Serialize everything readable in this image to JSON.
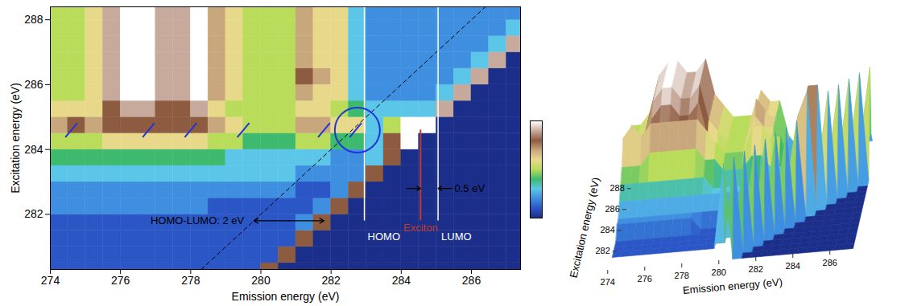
{
  "chart_data": {
    "type": "heatmap",
    "xlabel": "Emission energy (eV)",
    "ylabel": "Excitation energy (eV)",
    "xlim": [
      274,
      287.4
    ],
    "ylim": [
      280.3,
      288.4
    ],
    "xticks": [
      274,
      276,
      278,
      280,
      282,
      284,
      286
    ],
    "yticks": [
      282,
      284,
      286,
      288
    ],
    "x": [
      274.25,
      274.75,
      275.25,
      275.75,
      276.25,
      276.75,
      277.25,
      277.75,
      278.25,
      278.75,
      279.25,
      279.75,
      280.25,
      280.75,
      281.25,
      281.75,
      282.25,
      282.75,
      283.25,
      283.75,
      284.25,
      284.75,
      285.25,
      285.75,
      286.25,
      286.75,
      287.25
    ],
    "y": [
      280.25,
      280.75,
      281.25,
      281.75,
      282.25,
      282.75,
      283.25,
      283.75,
      284.25,
      284.75,
      285.25,
      285.75,
      286.25,
      286.75,
      287.25,
      287.75,
      288.25
    ],
    "cells": [
      [
        1,
        1,
        1,
        1,
        1,
        1,
        1,
        1,
        1,
        1,
        1,
        1,
        8,
        0,
        0,
        0,
        0,
        0,
        0,
        0,
        0,
        0,
        0,
        0,
        0,
        0,
        0
      ],
      [
        1,
        1,
        1,
        1,
        1,
        1,
        1,
        1,
        1,
        1,
        1,
        1,
        1,
        8,
        0,
        0,
        0,
        0,
        0,
        0,
        0,
        0,
        0,
        0,
        0,
        0,
        0
      ],
      [
        1,
        1,
        1,
        1,
        1,
        1,
        1,
        1,
        1,
        1,
        1,
        1,
        1,
        1,
        8,
        0,
        0,
        0,
        0,
        0,
        0,
        0,
        0,
        0,
        0,
        0,
        0
      ],
      [
        1,
        1,
        1,
        1,
        1,
        1,
        1,
        1,
        1,
        1,
        1,
        1,
        1,
        1,
        2,
        8,
        0,
        0,
        0,
        0,
        0,
        0,
        0,
        0,
        0,
        0,
        0
      ],
      [
        2,
        2,
        2,
        2,
        2,
        2,
        2,
        2,
        2,
        1,
        1,
        1,
        1,
        1,
        1,
        2,
        8,
        0,
        0,
        0,
        0,
        0,
        0,
        0,
        0,
        0,
        0
      ],
      [
        2,
        2,
        2,
        2,
        2,
        2,
        2,
        2,
        2,
        2,
        2,
        2,
        2,
        2,
        1,
        1,
        2,
        8,
        0,
        0,
        0,
        0,
        0,
        0,
        0,
        0,
        0
      ],
      [
        3,
        3,
        3,
        3,
        3,
        3,
        3,
        3,
        3,
        3,
        3,
        3,
        3,
        3,
        2,
        2,
        2,
        2,
        8,
        0,
        0,
        0,
        0,
        0,
        0,
        0,
        0
      ],
      [
        4,
        4,
        4,
        4,
        4,
        4,
        4,
        4,
        4,
        4,
        3,
        3,
        3,
        3,
        3,
        3,
        2,
        2,
        3,
        8,
        0,
        0,
        0,
        0,
        0,
        0,
        0
      ],
      [
        5,
        5,
        5,
        6,
        6,
        6,
        6,
        6,
        6,
        5,
        5,
        4,
        4,
        4,
        5,
        5,
        4,
        4,
        3,
        8,
        10,
        0,
        0,
        0,
        0,
        0,
        0
      ],
      [
        7,
        8,
        7,
        8,
        8,
        8,
        8,
        8,
        8,
        7,
        6,
        5,
        5,
        5,
        7,
        7,
        6,
        6,
        3,
        5,
        10,
        10,
        0,
        0,
        0,
        0,
        0
      ],
      [
        6,
        6,
        6,
        8,
        9,
        9,
        8,
        8,
        9,
        6,
        5,
        5,
        5,
        5,
        6,
        6,
        5,
        4,
        3,
        3,
        3,
        3,
        9,
        0,
        0,
        0,
        0
      ],
      [
        5,
        5,
        6,
        9,
        10,
        10,
        9,
        9,
        10,
        7,
        6,
        5,
        5,
        5,
        7,
        6,
        6,
        3,
        2,
        2,
        2,
        2,
        3,
        9,
        0,
        0,
        0
      ],
      [
        5,
        5,
        6,
        9,
        10,
        10,
        9,
        9,
        10,
        7,
        6,
        5,
        5,
        5,
        8,
        7,
        6,
        3,
        2,
        2,
        2,
        2,
        2,
        3,
        9,
        0,
        0
      ],
      [
        5,
        5,
        6,
        9,
        10,
        10,
        9,
        9,
        10,
        7,
        6,
        5,
        5,
        5,
        7,
        6,
        6,
        3,
        2,
        2,
        2,
        2,
        2,
        2,
        3,
        9,
        0
      ],
      [
        5,
        5,
        6,
        9,
        10,
        10,
        9,
        9,
        10,
        7,
        6,
        5,
        5,
        5,
        7,
        6,
        6,
        3,
        2,
        2,
        2,
        2,
        2,
        2,
        2,
        3,
        9
      ],
      [
        5,
        5,
        6,
        9,
        10,
        10,
        9,
        9,
        10,
        7,
        6,
        5,
        5,
        5,
        7,
        6,
        6,
        3,
        2,
        2,
        2,
        2,
        2,
        2,
        2,
        2,
        3
      ],
      [
        5,
        5,
        6,
        9,
        10,
        10,
        9,
        9,
        10,
        7,
        6,
        5,
        5,
        5,
        7,
        6,
        6,
        3,
        2,
        2,
        2,
        2,
        2,
        2,
        2,
        2,
        2
      ]
    ],
    "colorbar": {
      "range": [
        0,
        10
      ]
    },
    "levels": [
      {
        "label": "HOMO",
        "x": 282.95,
        "y": [
          281.8,
          288.4
        ],
        "color": "#ffffff"
      },
      {
        "label": "LUMO",
        "x": 285.05,
        "y": [
          281.8,
          288.4
        ],
        "color": "#ffffff"
      },
      {
        "label": "Exciton",
        "x": 284.55,
        "y": [
          281.8,
          284.6
        ],
        "color": "#c0392b"
      }
    ],
    "homo_lumo": {
      "label": "HOMO-LUMO: 2 eV",
      "from": 279.8,
      "to": 281.8,
      "y": 281.8
    },
    "gap": {
      "label": "0.5 eV",
      "from": 284.55,
      "to": 285.05,
      "y": 282.8
    },
    "dashed_line": {
      "x": [
        278.3,
        286.4
      ],
      "y": [
        280.3,
        288.4
      ]
    },
    "peaks": {
      "x": [
        274.6,
        276.8,
        278.0,
        279.5,
        281.8,
        282.7
      ],
      "y": 284.6,
      "circled": 282.75,
      "color": "#2233dd"
    },
    "surface": {
      "type": "surface",
      "xlabel": "Emission energy (eV)",
      "ylabel": "Excitation energy (eV)",
      "xticks": [
        274,
        276,
        278,
        280,
        282,
        284,
        286
      ],
      "yticks": [
        282,
        284,
        286,
        288
      ]
    }
  }
}
